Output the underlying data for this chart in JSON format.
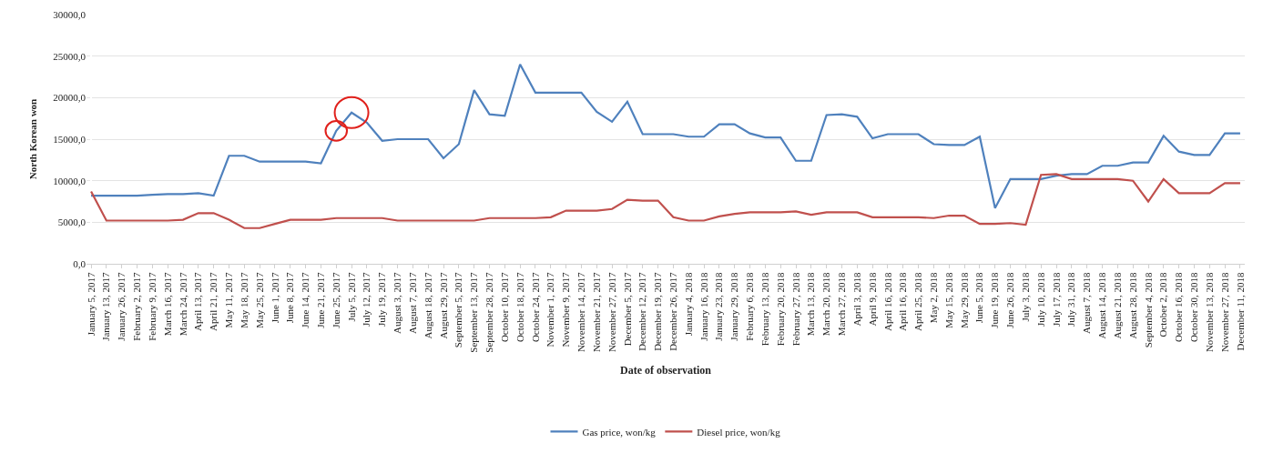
{
  "chart_data": {
    "type": "line",
    "xlabel": "Date of observation",
    "ylabel": "North Korean won",
    "categories": [
      "January 5, 2017",
      "January 13, 2017",
      "January 26, 2017",
      "February 2, 2017",
      "February 9, 2017",
      "March 16, 2017",
      "March 24, 2017",
      "April 13, 2017",
      "April 21, 2017",
      "May 11, 2017",
      "May 18, 2017",
      "May 25, 2017",
      "June 1, 2017",
      "June 8, 2017",
      "June 14, 2017",
      "June 21, 2017",
      "June 25, 2017",
      "July 5, 2017",
      "July 12, 2017",
      "July 19, 2017",
      "August 3, 2017",
      "August 7, 2017",
      "August 18, 2017",
      "August 29, 2017",
      "September 5, 2017",
      "September 13, 2017",
      "September 28, 2017",
      "October 10, 2017",
      "October 18, 2017",
      "October 24, 2017",
      "November 1, 2017",
      "November 9, 2017",
      "November 14, 2017",
      "November 21, 2017",
      "November 27, 2017",
      "December 5, 2017",
      "December 12, 2017",
      "December 19, 2017",
      "December 26, 2017",
      "January 4, 2018",
      "January 16, 2018",
      "January 23, 2018",
      "January 29, 2018",
      "February 6, 2018",
      "February 13, 2018",
      "February 20, 2018",
      "February 27, 2018",
      "March 13, 2018",
      "March 20, 2018",
      "March 27, 2018",
      "April 3, 2018",
      "April 9, 2018",
      "April 16, 2018",
      "April 16, 2018",
      "April 25, 2018",
      "May 2, 2018",
      "May 15, 2018",
      "May 29, 2018",
      "June 5, 2018",
      "June 19, 2018",
      "June 26, 2018",
      "July 3, 2018",
      "July 10, 2018",
      "July 17, 2018",
      "July 31, 2018",
      "August 7, 2018",
      "August 14, 2018",
      "August 21, 2018",
      "August 28, 2018",
      "September 4, 2018",
      "October 2, 2018",
      "October 16, 2018",
      "October 30, 2018",
      "November 13, 2018",
      "November 27, 2018",
      "December 11, 2018"
    ],
    "series": [
      {
        "name": "Gas price, won/kg",
        "color": "#4f81bd",
        "values": [
          8200,
          8200,
          8200,
          8200,
          8300,
          8400,
          8400,
          8500,
          8200,
          13000,
          13000,
          12300,
          12300,
          12300,
          12300,
          12100,
          16000,
          18200,
          17000,
          14800,
          15000,
          15000,
          15000,
          12700,
          14400,
          20900,
          18000,
          17800,
          24000,
          20600,
          20600,
          20600,
          20600,
          18300,
          17100,
          19500,
          15600,
          15600,
          15600,
          15300,
          15300,
          16800,
          16800,
          15700,
          15200,
          15200,
          12400,
          12400,
          17900,
          18000,
          17700,
          15100,
          15600,
          15600,
          15600,
          14400,
          14300,
          14300,
          15300,
          6700,
          10200,
          10200,
          10200,
          10600,
          10800,
          10800,
          11800,
          11800,
          12200,
          12200,
          15400,
          13500,
          13100,
          13100,
          15700,
          15700
        ]
      },
      {
        "name": "Diesel price, won/kg",
        "color": "#c0504d",
        "values": [
          8700,
          5200,
          5200,
          5200,
          5200,
          5200,
          5300,
          6100,
          6100,
          5300,
          4300,
          4300,
          4800,
          5300,
          5300,
          5300,
          5500,
          5500,
          5500,
          5500,
          5200,
          5200,
          5200,
          5200,
          5200,
          5200,
          5500,
          5500,
          5500,
          5500,
          5600,
          6400,
          6400,
          6400,
          6600,
          7700,
          7600,
          7600,
          5600,
          5200,
          5200,
          5700,
          6000,
          6200,
          6200,
          6200,
          6300,
          5900,
          6200,
          6200,
          6200,
          5600,
          5600,
          5600,
          5600,
          5500,
          5800,
          5800,
          4800,
          4800,
          4900,
          4700,
          10700,
          10800,
          10200,
          10200,
          10200,
          10200,
          10000,
          7500,
          10200,
          8500,
          8500,
          8500,
          9700,
          9700
        ]
      }
    ],
    "ylim": [
      0,
      30000
    ],
    "yticks": [
      {
        "value": 0,
        "label": "0,0"
      },
      {
        "value": 5000,
        "label": "5000,0"
      },
      {
        "value": 10000,
        "label": "10000,0"
      },
      {
        "value": 15000,
        "label": "15000,0"
      },
      {
        "value": 20000,
        "label": "20000,0"
      },
      {
        "value": 25000,
        "label": "25000,0"
      },
      {
        "value": 30000,
        "label": "30000,0"
      }
    ],
    "grid": "y",
    "legend": "bottom",
    "marker": "none",
    "line_style": "solid"
  }
}
